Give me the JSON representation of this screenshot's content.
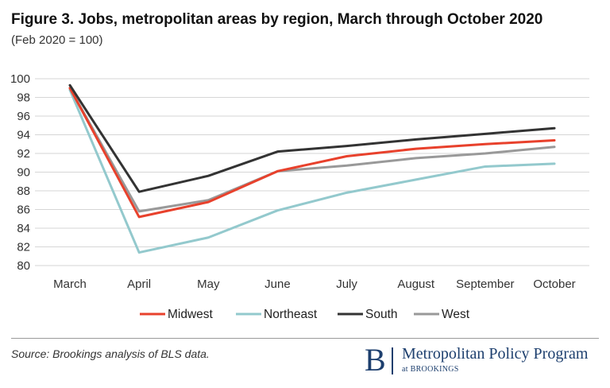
{
  "title": "Figure 3. Jobs, metropolitan areas by region, March through October 2020",
  "subtitle": "(Feb 2020 = 100)",
  "source": "Source: Brookings analysis of BLS data.",
  "logo": {
    "main": "Metropolitan Policy Program",
    "sub": "at BROOKINGS",
    "letter": "B"
  },
  "chart_data": {
    "type": "line",
    "title": "Figure 3. Jobs, metropolitan areas by region, March through October 2020",
    "subtitle": "(Feb 2020 = 100)",
    "xlabel": "",
    "ylabel": "",
    "categories": [
      "March",
      "April",
      "May",
      "June",
      "July",
      "August",
      "September",
      "October"
    ],
    "ylim": [
      80,
      100
    ],
    "yticks": [
      80,
      82,
      84,
      86,
      88,
      90,
      92,
      94,
      96,
      98,
      100
    ],
    "grid": true,
    "legend_position": "bottom",
    "series": [
      {
        "name": "Midwest",
        "color": "#e8412c",
        "values": [
          99.0,
          85.2,
          86.8,
          90.1,
          91.7,
          92.5,
          93.0,
          93.4
        ]
      },
      {
        "name": "Northeast",
        "color": "#93c9cd",
        "values": [
          98.8,
          81.4,
          83.0,
          85.9,
          87.8,
          89.2,
          90.6,
          90.9
        ]
      },
      {
        "name": "South",
        "color": "#333333",
        "values": [
          99.3,
          87.9,
          89.6,
          92.2,
          92.8,
          93.5,
          94.1,
          94.7
        ]
      },
      {
        "name": "West",
        "color": "#999999",
        "values": [
          99.0,
          85.8,
          87.0,
          90.1,
          90.7,
          91.5,
          92.0,
          92.7
        ]
      }
    ]
  }
}
